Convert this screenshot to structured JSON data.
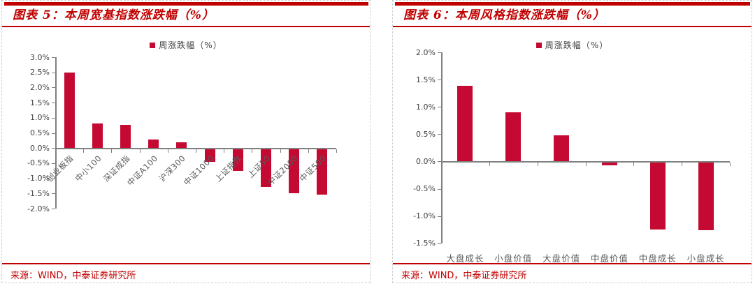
{
  "colors": {
    "accent_red": "#C00000",
    "bar_red": "#C40A32",
    "axis_gray": "#808080",
    "tick_text": "#404040",
    "category_text": "#595959"
  },
  "panels": [
    {
      "title": "图表 5：本周宽基指数涨跌幅（%）",
      "source": "来源：WIND，中泰证券研究所"
    },
    {
      "title": "图表 6：本周风格指数涨跌幅（%）",
      "source": "来源：WIND，中泰证券研究所"
    }
  ],
  "chart_data": [
    {
      "type": "bar",
      "title": "本周宽基指数涨跌幅（%）",
      "legend": [
        "周涨跌幅（%）"
      ],
      "legend_position": "top-center",
      "grid": false,
      "categories": [
        "创业板指",
        "中小100",
        "深证成指",
        "中证A100",
        "沪深300",
        "中证1000",
        "上证指数",
        "上证50",
        "中证2000",
        "中证500"
      ],
      "values": [
        2.5,
        0.8,
        0.76,
        0.27,
        0.19,
        -0.43,
        -0.72,
        -1.25,
        -1.45,
        -1.5
      ],
      "ylim": [
        -2.0,
        3.0
      ],
      "ytick_step": 0.5,
      "ytick_labels": [
        "3.0%",
        "2.5%",
        "2.0%",
        "1.5%",
        "1.0%",
        "0.5%",
        "0.0%",
        "-0.5%",
        "-1.0%",
        "-1.5%",
        "-2.0%"
      ],
      "bar_color": "#C40A32",
      "xlabel_rotation": -45,
      "xlabel": "",
      "ylabel": ""
    },
    {
      "type": "bar",
      "title": "本周风格指数涨跌幅（%）",
      "legend": [
        "周涨跌幅（%）"
      ],
      "legend_position": "top-center",
      "grid": false,
      "categories": [
        "大盘成长",
        "小盘价值",
        "大盘价值",
        "中盘价值",
        "中盘成长",
        "小盘成长"
      ],
      "values": [
        1.39,
        0.9,
        0.48,
        -0.05,
        -1.23,
        -1.24
      ],
      "ylim": [
        -1.5,
        2.0
      ],
      "ytick_step": 0.5,
      "ytick_labels": [
        "2.0%",
        "1.5%",
        "1.0%",
        "0.5%",
        "0.0%",
        "-0.5%",
        "-1.0%",
        "-1.5%"
      ],
      "bar_color": "#C40A32",
      "xlabel_rotation": 0,
      "xlabel": "",
      "ylabel": ""
    }
  ]
}
